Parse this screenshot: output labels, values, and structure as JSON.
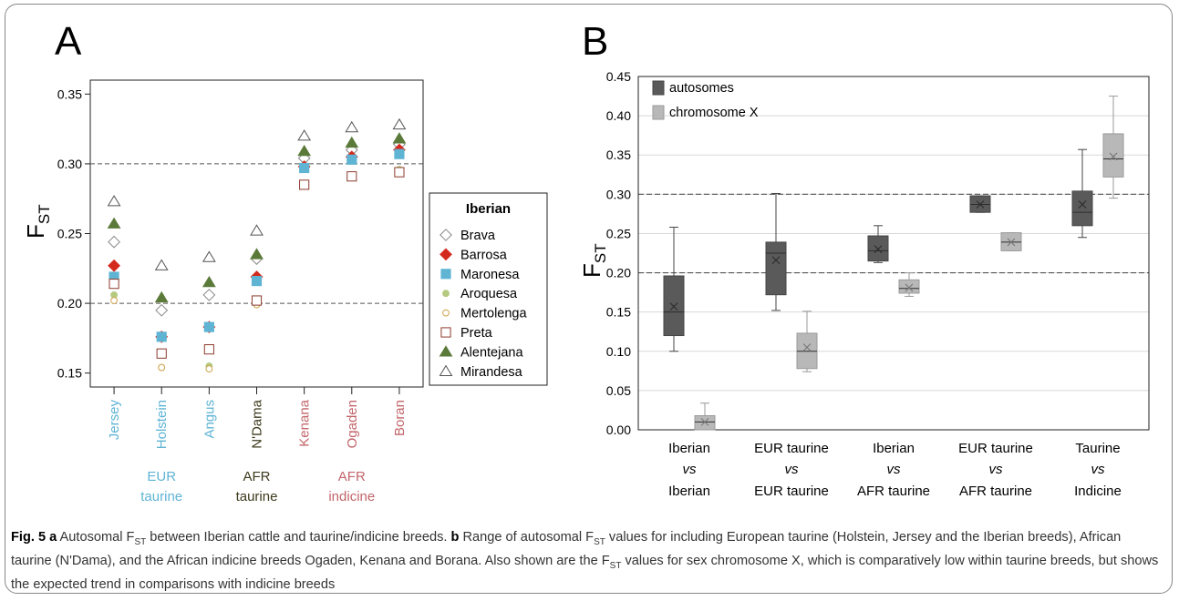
{
  "panel_a": {
    "letter": "A",
    "ylabel_main": "F",
    "ylabel_sub": "ST",
    "legend_title": "Iberian"
  },
  "panel_b": {
    "letter": "B",
    "ylabel_main": "F",
    "ylabel_sub": "ST"
  },
  "caption": {
    "fig": "Fig. 5",
    "a_marker": "a",
    "a_pre": "Autosomal F",
    "a_sub": "ST",
    "a_post": " between Iberian cattle and taurine/indicine breeds. ",
    "b_marker": "b",
    "b_pre": "Range of autosomal F",
    "b_sub": "ST",
    "b_mid": " values for including European taurine (Holstein, Jersey and the Iberian breeds), African taurine (N'Dama), and the African indicine breeds Ogaden, Kenana and Borana. Also shown are the F",
    "b_sub2": "ST",
    "b_post": " values for sex chromosome X, which is comparatively low within taurine breeds, but shows the expected trend in comparisons with indicine breeds"
  },
  "chart_data": [
    {
      "type": "scatter",
      "panel": "A",
      "ylabel": "FST",
      "ylim": [
        0.14,
        0.36
      ],
      "yticks": [
        "0.15",
        "0.20",
        "0.25",
        "0.30",
        "0.35"
      ],
      "ytick_values": [
        0.15,
        0.2,
        0.25,
        0.3,
        0.35
      ],
      "reference_lines": [
        0.2,
        0.3
      ],
      "categories": [
        "Jersey",
        "Holstein",
        "Angus",
        "N'Dama",
        "Kenana",
        "Ogaden",
        "Boran"
      ],
      "category_colors": [
        "#5fb4d4",
        "#5fb4d4",
        "#5fb4d4",
        "#3d3a1c",
        "#c2666b",
        "#c2666b",
        "#c2666b"
      ],
      "groups": [
        {
          "lines": [
            "EUR",
            "taurine"
          ],
          "color": "#5fb4d4",
          "center": 1
        },
        {
          "lines": [
            "AFR",
            "taurine"
          ],
          "color": "#3d3a1c",
          "center": 3
        },
        {
          "lines": [
            "AFR",
            "indicine"
          ],
          "color": "#c2666b",
          "center": 5
        }
      ],
      "legend_title": "Iberian",
      "legend_position": "right",
      "series": [
        {
          "name": "Brava",
          "marker": "diamond-open",
          "color": "#888888",
          "values": [
            0.244,
            0.195,
            0.206,
            0.232,
            0.304,
            0.31,
            0.314
          ]
        },
        {
          "name": "Barrosa",
          "marker": "diamond-filled",
          "color": "#d42a1e",
          "values": [
            0.227,
            0.176,
            0.183,
            0.219,
            0.298,
            0.305,
            0.31
          ]
        },
        {
          "name": "Maronesa",
          "marker": "square-filled",
          "color": "#5fb4d4",
          "values": [
            0.219,
            0.176,
            0.183,
            0.216,
            0.297,
            0.303,
            0.307
          ]
        },
        {
          "name": "Aroquesa",
          "marker": "circle-filled",
          "color": "#b5c97f",
          "values": [
            0.206,
            0.154,
            0.155,
            0.2,
            0.286,
            0.292,
            0.296
          ]
        },
        {
          "name": "Mertolenga",
          "marker": "circle-open",
          "color": "#d0a24a",
          "values": [
            0.202,
            0.154,
            0.153,
            0.199,
            0.285,
            0.291,
            0.295
          ]
        },
        {
          "name": "Preta",
          "marker": "square-open",
          "color": "#8c3a2c",
          "values": [
            0.214,
            0.164,
            0.167,
            0.202,
            0.285,
            0.291,
            0.294
          ]
        },
        {
          "name": "Alentejana",
          "marker": "triangle-filled",
          "color": "#5b7a3a",
          "values": [
            0.257,
            0.204,
            0.215,
            0.235,
            0.309,
            0.315,
            0.318
          ]
        },
        {
          "name": "Mirandesa",
          "marker": "triangle-open",
          "color": "#555555",
          "values": [
            0.273,
            0.227,
            0.233,
            0.252,
            0.32,
            0.326,
            0.328
          ]
        }
      ]
    },
    {
      "type": "box",
      "panel": "B",
      "ylabel": "FST",
      "ylim": [
        0.0,
        0.45
      ],
      "yticks": [
        "0.00",
        "0.05",
        "0.10",
        "0.15",
        "0.20",
        "0.25",
        "0.30",
        "0.35",
        "0.40",
        "0.45"
      ],
      "ytick_values": [
        0.0,
        0.05,
        0.1,
        0.15,
        0.2,
        0.25,
        0.3,
        0.35,
        0.4,
        0.45
      ],
      "grid": true,
      "reference_lines": [
        0.2,
        0.3
      ],
      "legend_position": "top-left",
      "categories": [
        {
          "top": "Iberian",
          "mid": "vs",
          "bottom": "Iberian"
        },
        {
          "top": "EUR taurine",
          "mid": "vs",
          "bottom": "EUR taurine"
        },
        {
          "top": "Iberian",
          "mid": "vs",
          "bottom": "AFR taurine"
        },
        {
          "top": "EUR taurine",
          "mid": "vs",
          "bottom": "AFR taurine"
        },
        {
          "top": "Taurine",
          "mid": "vs",
          "bottom": "Indicine"
        }
      ],
      "series": [
        {
          "name": "autosomes",
          "color": "#5a5a5a",
          "edge": "#454545",
          "boxes": [
            {
              "min": 0.1,
              "q1": 0.12,
              "median": 0.15,
              "mean": 0.157,
              "q3": 0.196,
              "max": 0.258
            },
            {
              "min": 0.152,
              "q1": 0.172,
              "median": 0.225,
              "mean": 0.216,
              "q3": 0.239,
              "max": 0.301
            },
            {
              "min": 0.213,
              "q1": 0.215,
              "median": 0.228,
              "mean": 0.23,
              "q3": 0.247,
              "max": 0.26
            },
            {
              "min": 0.277,
              "q1": 0.277,
              "median": 0.287,
              "mean": 0.287,
              "q3": 0.298,
              "max": 0.298
            },
            {
              "min": 0.245,
              "q1": 0.26,
              "median": 0.277,
              "mean": 0.287,
              "q3": 0.304,
              "max": 0.357
            }
          ]
        },
        {
          "name": "chromosome X",
          "color": "#b8b8b8",
          "edge": "#9a9a9a",
          "boxes": [
            {
              "min": 0.0,
              "q1": 0.0,
              "median": 0.01,
              "mean": 0.01,
              "q3": 0.018,
              "max": 0.034
            },
            {
              "min": 0.074,
              "q1": 0.078,
              "median": 0.1,
              "mean": 0.105,
              "q3": 0.123,
              "max": 0.151
            },
            {
              "min": 0.17,
              "q1": 0.174,
              "median": 0.18,
              "mean": 0.181,
              "q3": 0.191,
              "max": 0.2
            },
            {
              "min": 0.228,
              "q1": 0.228,
              "median": 0.239,
              "mean": 0.239,
              "q3": 0.251,
              "max": 0.251
            },
            {
              "min": 0.295,
              "q1": 0.322,
              "median": 0.345,
              "mean": 0.348,
              "q3": 0.377,
              "max": 0.425
            }
          ]
        }
      ]
    }
  ]
}
